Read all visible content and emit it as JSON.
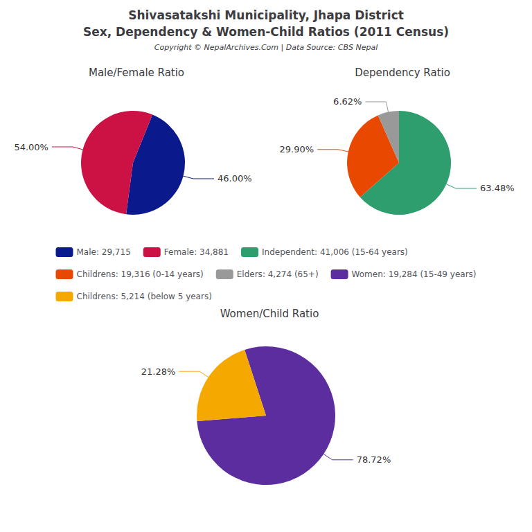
{
  "title": "Shivasatakshi Municipality, Jhapa District",
  "subtitle": "Sex, Dependency & Women-Child Ratios (2011 Census)",
  "annotations": [
    "Copyright © NepalArchives.Com | Data Source: CBS Nepal"
  ],
  "legend": "center",
  "chart_data": [
    {
      "type": "pie",
      "title": "Male/Female Ratio",
      "categories": [
        "Male: 29,715",
        "Female: 34,881"
      ],
      "values": [
        46.0,
        54.0
      ],
      "value_labels": [
        "46.00%",
        "54.00%"
      ],
      "colors": [
        "#0a1a8c",
        "#cc1144"
      ],
      "data_labels": true
    },
    {
      "type": "pie",
      "title": "Dependency Ratio",
      "categories": [
        "Independent: 41,006 (15-64 years)",
        "Childrens: 19,316 (0-14 years)",
        "Elders: 4,274 (65+)"
      ],
      "values": [
        63.48,
        29.9,
        6.62
      ],
      "value_labels": [
        "63.48%",
        "29.90%",
        "6.62%"
      ],
      "colors": [
        "#2e9e6e",
        "#e84800",
        "#999999"
      ],
      "data_labels": true
    },
    {
      "type": "pie",
      "title": "Women/Child Ratio",
      "categories": [
        "Women: 19,284 (15-49 years)",
        "Childrens: 5,214 (below 5 years)"
      ],
      "values": [
        78.72,
        21.28
      ],
      "value_labels": [
        "78.72%",
        "21.28%"
      ],
      "colors": [
        "#5b2d9e",
        "#f5a800"
      ],
      "data_labels": true
    }
  ]
}
